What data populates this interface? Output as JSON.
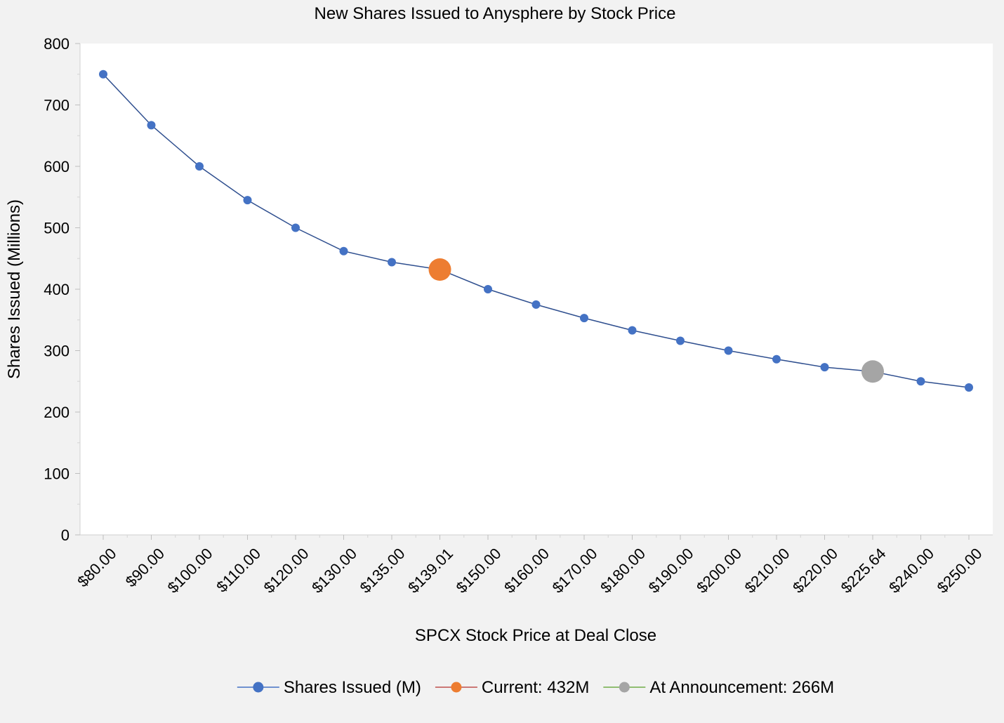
{
  "chart_data": {
    "type": "line",
    "title": "New Shares Issued to Anysphere by Stock Price",
    "xlabel": "SPCX Stock Price at Deal Close",
    "ylabel": "Shares Issued (Millions)",
    "ylim": [
      0,
      800
    ],
    "yticks": [
      "0",
      "100",
      "200",
      "300",
      "400",
      "500",
      "600",
      "700",
      "800"
    ],
    "grid": false,
    "legend_position": "bottom",
    "categories": [
      "$80.00",
      "$90.00",
      "$100.00",
      "$110.00",
      "$120.00",
      "$130.00",
      "$135.00",
      "$139.01",
      "$150.00",
      "$160.00",
      "$170.00",
      "$180.00",
      "$190.00",
      "$200.00",
      "$210.00",
      "$220.00",
      "$225.64",
      "$240.00",
      "$250.00"
    ],
    "series": [
      {
        "name": "Shares Issued (M)",
        "color": "#4472c4",
        "values": [
          750,
          667,
          600,
          545,
          500,
          462,
          444,
          432,
          400,
          375,
          353,
          333,
          316,
          300,
          286,
          273,
          266,
          250,
          240
        ]
      },
      {
        "name": "Current: 432M",
        "color": "#ed7d31",
        "points": [
          {
            "x": "$139.01",
            "y": 432
          }
        ]
      },
      {
        "name": "At Announcement: 266M",
        "color": "#a5a5a5",
        "points": [
          {
            "x": "$225.64",
            "y": 266
          }
        ]
      }
    ],
    "legend_line_colors": [
      "#4472c4",
      "#c0504d",
      "#70ad47"
    ]
  }
}
